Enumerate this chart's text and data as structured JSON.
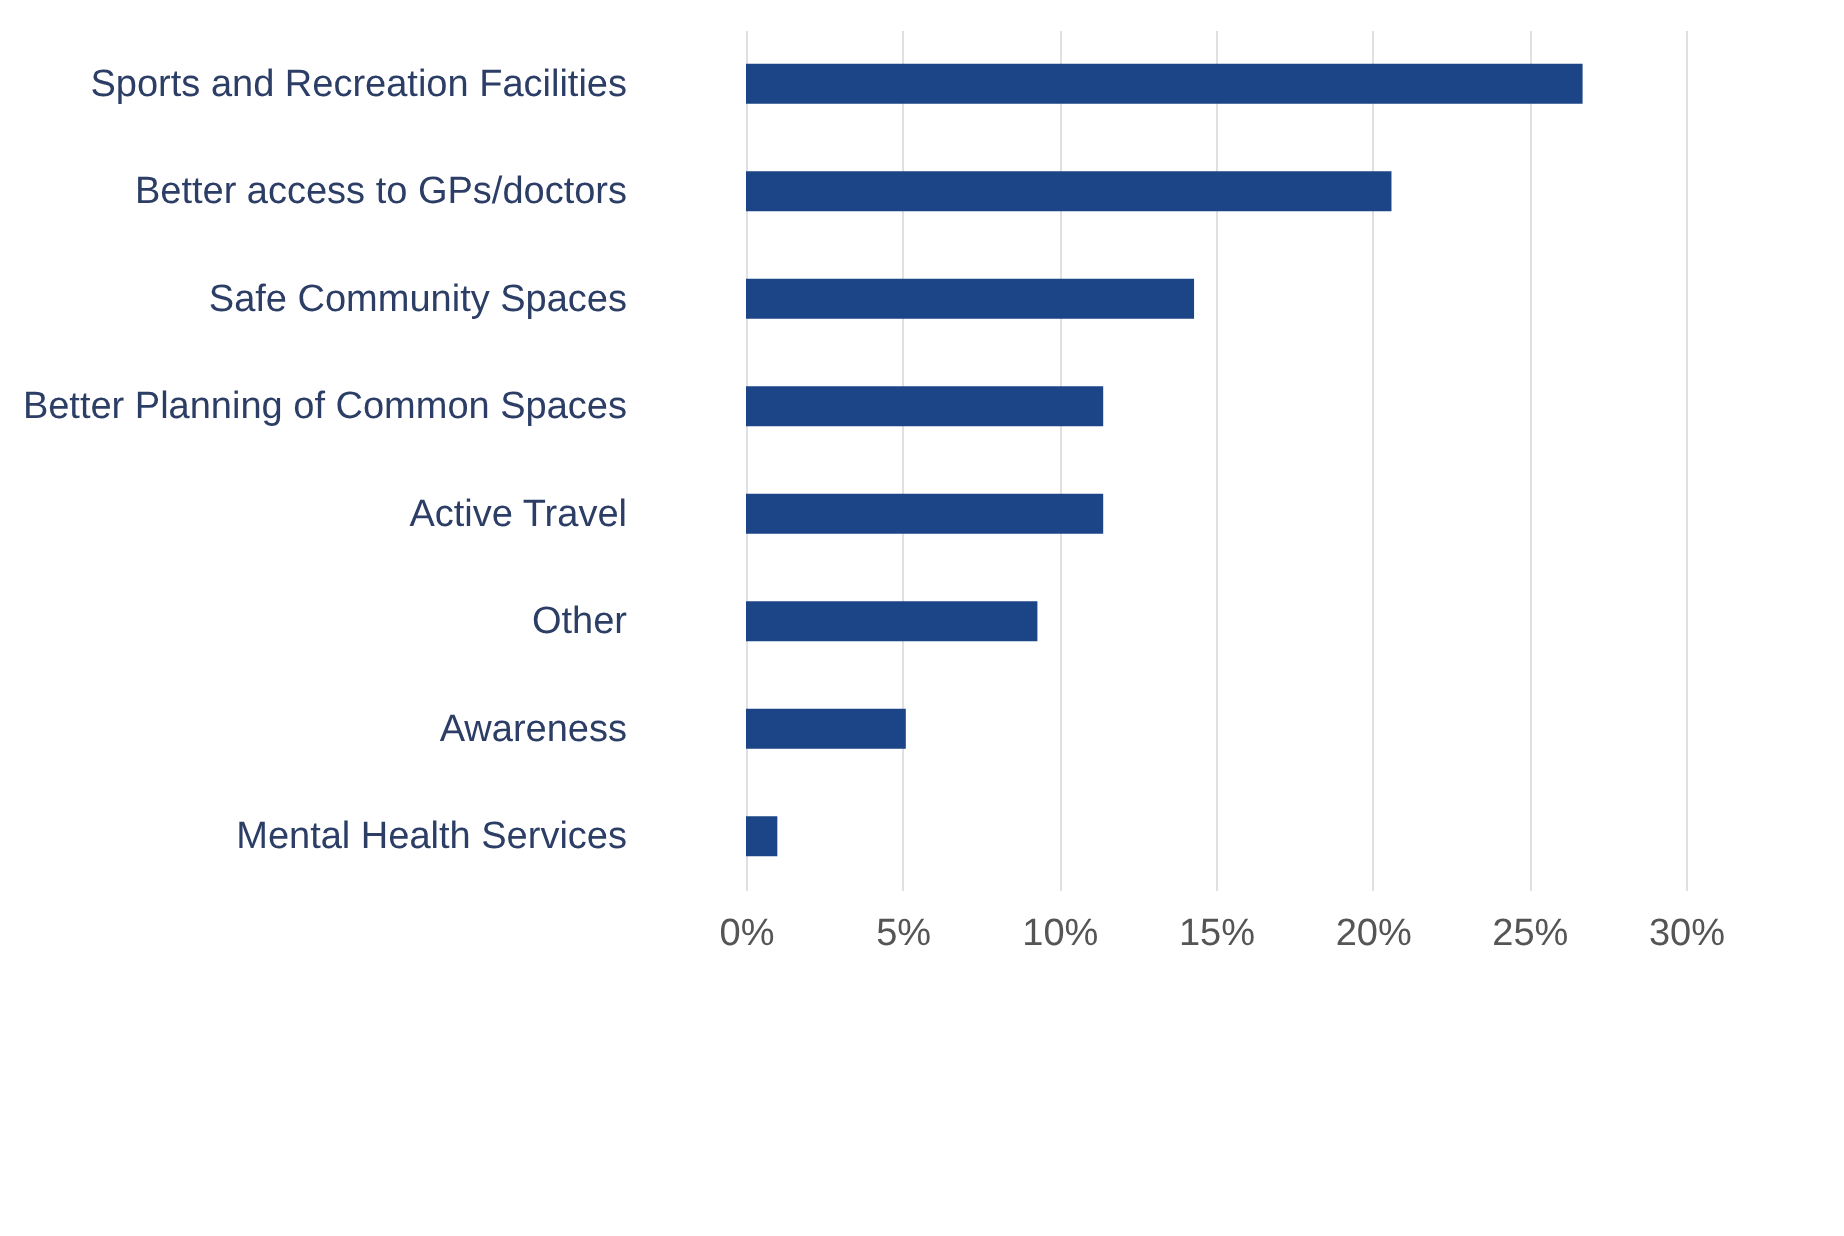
{
  "chart_data": {
    "type": "bar",
    "orientation": "horizontal",
    "categories": [
      "Sports and Recreation Facilities",
      "Better access to GPs/doctors",
      "Safe Community Spaces",
      "Better Planning of Common Spaces",
      "Active Travel",
      "Other",
      "Awareness",
      "Mental Health Services"
    ],
    "values": [
      26.7,
      20.6,
      14.3,
      11.4,
      11.4,
      9.3,
      5.1,
      1.0
    ],
    "color": "#1b4586",
    "xlim": [
      0,
      30
    ],
    "xticks": [
      {
        "value": 0,
        "label": "0%"
      },
      {
        "value": 5,
        "label": "5%"
      },
      {
        "value": 10,
        "label": "10%"
      },
      {
        "value": 15,
        "label": "15%"
      },
      {
        "value": 20,
        "label": "20%"
      },
      {
        "value": 25,
        "label": "25%"
      },
      {
        "value": 30,
        "label": "30%"
      }
    ],
    "grid": "x"
  }
}
